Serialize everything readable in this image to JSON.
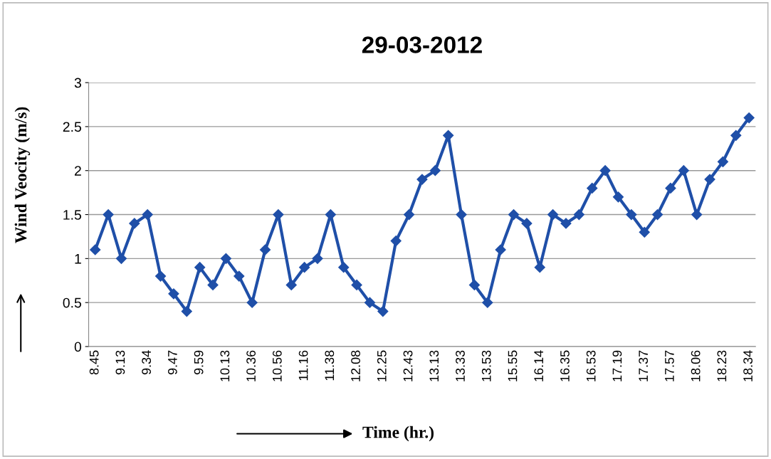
{
  "chart_data": {
    "type": "line",
    "title": "29-03-2012",
    "xlabel": "Time (hr.)",
    "ylabel": "Wind Veocity (m/s)",
    "categories": [
      "8.45",
      null,
      "9.13",
      null,
      "9.34",
      null,
      "9.47",
      null,
      "9.59",
      null,
      "10.13",
      null,
      "10.36",
      null,
      "10.56",
      null,
      "11.16",
      null,
      "11.38",
      null,
      "12.08",
      null,
      "12.25",
      null,
      "12.43",
      null,
      "13.13",
      null,
      "13.33",
      null,
      "13.53",
      null,
      "15.55",
      null,
      "16.14",
      null,
      "16.35",
      null,
      "16.53",
      null,
      "17.19",
      null,
      "17.37",
      null,
      "17.57",
      null,
      "18.06",
      null,
      "18.23",
      null,
      "18.34"
    ],
    "series": [
      {
        "color": "#1f4fa8",
        "values": [
          1.1,
          1.5,
          1.0,
          1.4,
          1.5,
          0.8,
          0.6,
          0.4,
          0.9,
          0.7,
          1.0,
          0.8,
          0.5,
          1.1,
          1.5,
          0.7,
          0.9,
          1.0,
          1.5,
          0.9,
          0.7,
          0.5,
          0.4,
          1.2,
          1.5,
          1.9,
          2.0,
          2.4,
          1.5,
          0.7,
          0.5,
          1.1,
          1.5,
          1.4,
          0.9,
          1.5,
          1.4,
          1.5,
          1.8,
          2.0,
          1.7,
          1.5,
          1.3,
          1.5,
          1.8,
          2.0,
          1.5,
          1.9,
          2.1,
          2.4,
          2.6
        ]
      }
    ],
    "ylim": [
      0,
      3
    ],
    "yticks": [
      0,
      0.5,
      1,
      1.5,
      2,
      2.5,
      3
    ],
    "grid": "y",
    "marker": "diamond",
    "line_style": "solid",
    "legend": false
  }
}
